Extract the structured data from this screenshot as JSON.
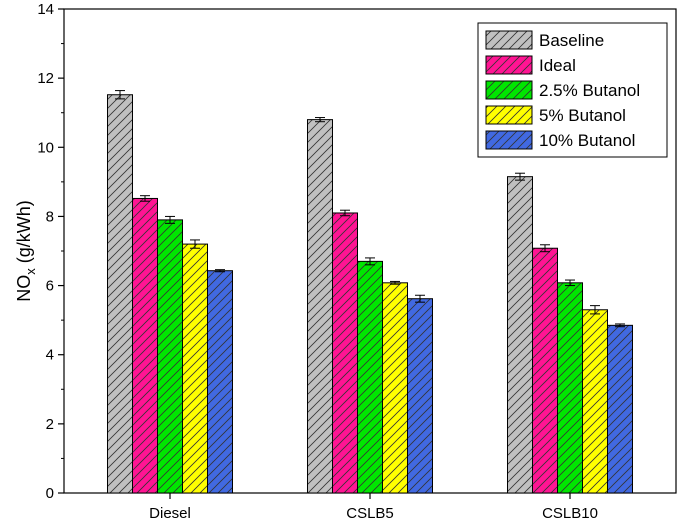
{
  "chart_data": {
    "type": "bar",
    "categories": [
      "Diesel",
      "CSLB5",
      "CSLB10"
    ],
    "series": [
      {
        "name": "Baseline",
        "color": "#c0c0c0",
        "values": [
          11.52,
          10.8,
          9.15
        ],
        "errors": [
          0.12,
          0.06,
          0.1
        ]
      },
      {
        "name": "Ideal",
        "color": "#ff1493",
        "values": [
          8.52,
          8.1,
          7.08
        ],
        "errors": [
          0.08,
          0.08,
          0.1
        ]
      },
      {
        "name": "2.5% Butanol",
        "color": "#00e600",
        "values": [
          7.9,
          6.7,
          6.08
        ],
        "errors": [
          0.1,
          0.1,
          0.08
        ]
      },
      {
        "name": "5% Butanol",
        "color": "#ffff00",
        "values": [
          7.2,
          6.08,
          5.3
        ],
        "errors": [
          0.12,
          0.04,
          0.12
        ]
      },
      {
        "name": "10% Butanol",
        "color": "#4169e1",
        "values": [
          6.43,
          5.62,
          4.85
        ],
        "errors": [
          0.03,
          0.1,
          0.04
        ]
      }
    ],
    "title": "",
    "xlabel": "",
    "ylabel_main": "NO",
    "ylabel_sub": "x",
    "ylabel_unit": " (g/kWh)",
    "ylim": [
      0,
      14
    ],
    "yticks": [
      "0",
      "2",
      "4",
      "6",
      "8",
      "10",
      "12",
      "14"
    ],
    "legend_position": "top-right"
  }
}
